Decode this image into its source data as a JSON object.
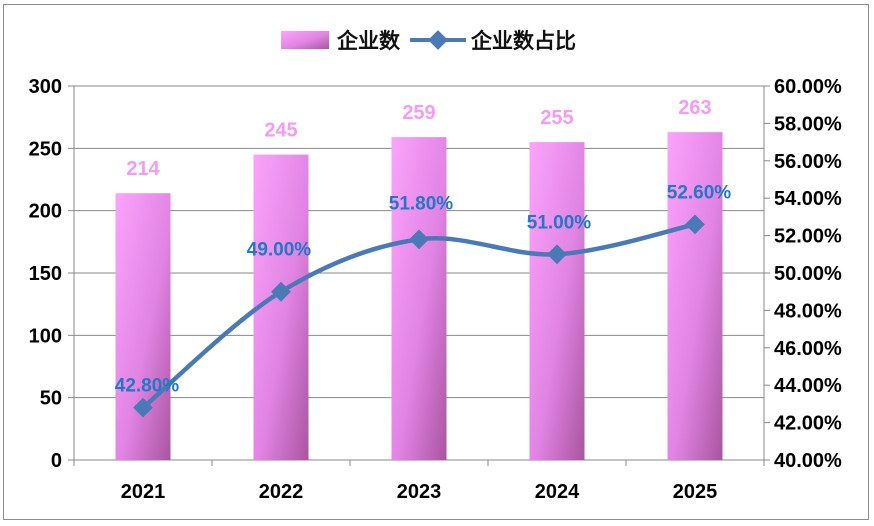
{
  "chart_data": {
    "type": "bar+line",
    "categories": [
      "2021",
      "2022",
      "2023",
      "2024",
      "2025"
    ],
    "series": [
      {
        "name": "企业数",
        "type": "bar",
        "axis": "left",
        "values": [
          214,
          245,
          259,
          255,
          263
        ],
        "labels": [
          "214",
          "245",
          "259",
          "255",
          "263"
        ]
      },
      {
        "name": "企业数占比",
        "type": "line",
        "axis": "right",
        "values": [
          42.8,
          49.0,
          51.8,
          51.0,
          52.6
        ],
        "labels": [
          "42.80%",
          "49.00%",
          "51.80%",
          "51.00%",
          "52.60%"
        ]
      }
    ],
    "y_left": {
      "min": 0,
      "max": 300,
      "ticks": [
        "0",
        "50",
        "100",
        "150",
        "200",
        "250",
        "300"
      ]
    },
    "y_right": {
      "min": 40,
      "max": 60,
      "ticks": [
        "40.00%",
        "42.00%",
        "44.00%",
        "46.00%",
        "48.00%",
        "50.00%",
        "52.00%",
        "54.00%",
        "56.00%",
        "58.00%",
        "60.00%"
      ]
    },
    "legend": {
      "position": "top-center",
      "items": [
        "企业数",
        "企业数占比"
      ]
    },
    "grid": "horizontal",
    "colors": {
      "bar_light": "#f8a0f8",
      "bar_dark": "#b25fb4",
      "line": "#4a7ab5",
      "bar_label": "#f59af5",
      "line_label": "#1f78c8"
    }
  }
}
